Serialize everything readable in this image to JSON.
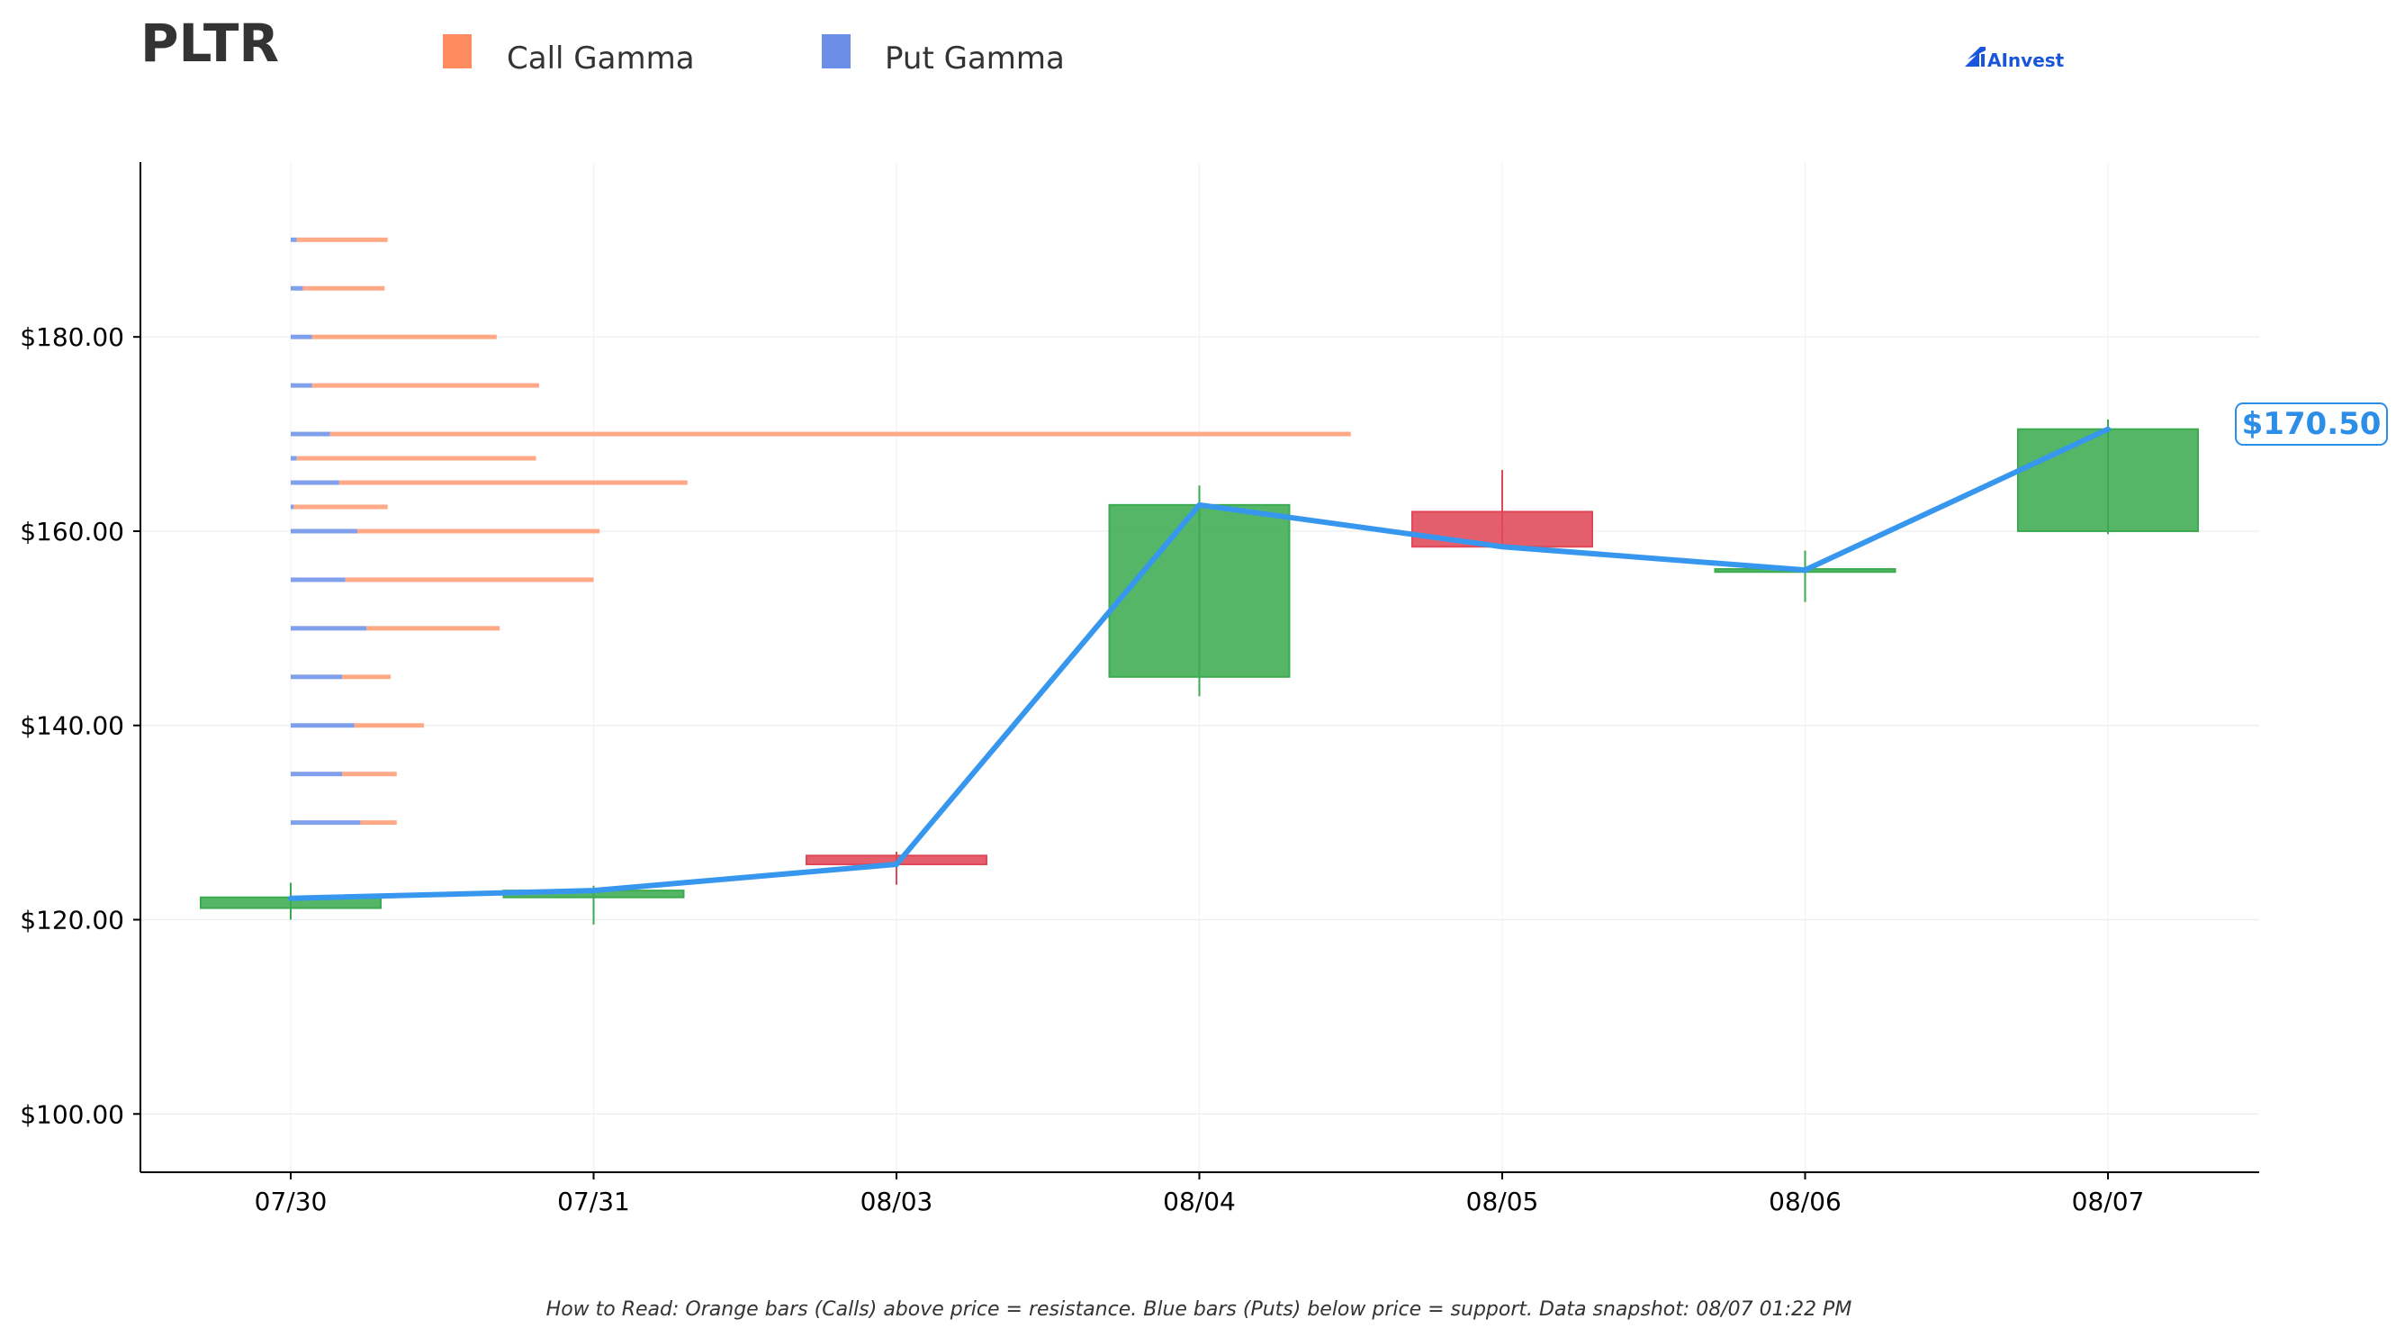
{
  "header": {
    "ticker": "PLTR",
    "brand": "AInvest"
  },
  "legend": {
    "call_label": "Call Gamma",
    "put_label": "Put Gamma"
  },
  "footer": {
    "note": "How to Read: Orange bars (Calls) above price = resistance. Blue bars (Puts) below price = support. Data snapshot: 08/07 01:22 PM"
  },
  "price_tag": {
    "label": "$170.50"
  },
  "colors": {
    "call": "#ff8c5f",
    "put": "#6b8fe8",
    "up": "#3cab50",
    "down": "#e04757",
    "line": "#3797ee",
    "tag": "#2d8ee8"
  },
  "chart_data": {
    "type": "candlestick",
    "title": "PLTR",
    "categories": [
      "07/30",
      "07/31",
      "08/03",
      "08/04",
      "08/05",
      "08/06",
      "08/07"
    ],
    "ylim": [
      94,
      198
    ],
    "yticks": [
      100,
      120,
      140,
      160,
      180
    ],
    "ytick_labels": [
      "$100.00",
      "$120.00",
      "$140.00",
      "$160.00",
      "$180.00"
    ],
    "grid": true,
    "legend_position": "top",
    "candles": [
      {
        "date": "07/30",
        "open": 121.2,
        "close": 122.3,
        "high": 123.8,
        "low": 120.0
      },
      {
        "date": "07/31",
        "open": 122.3,
        "close": 123.0,
        "high": 123.5,
        "low": 119.5
      },
      {
        "date": "08/03",
        "open": 126.6,
        "close": 125.7,
        "high": 127.0,
        "low": 123.6
      },
      {
        "date": "08/04",
        "open": 145.0,
        "close": 162.7,
        "high": 164.7,
        "low": 143.0
      },
      {
        "date": "08/05",
        "open": 162.0,
        "close": 158.4,
        "high": 166.3,
        "low": 158.2
      },
      {
        "date": "08/06",
        "open": 155.8,
        "close": 156.1,
        "high": 158.0,
        "low": 152.7
      },
      {
        "date": "08/07",
        "open": 160.0,
        "close": 170.5,
        "high": 171.5,
        "low": 159.7
      }
    ],
    "close_line": [
      122.2,
      123.0,
      125.7,
      162.7,
      158.4,
      156.0,
      170.5
    ],
    "gamma_scale_note": "relative exposure units, 07/30-to-07/31 spacing = 100",
    "gamma": [
      {
        "strike": 190,
        "put": 2,
        "call": 30
      },
      {
        "strike": 185,
        "put": 4,
        "call": 27
      },
      {
        "strike": 180,
        "put": 7,
        "call": 61
      },
      {
        "strike": 175,
        "put": 7,
        "call": 75
      },
      {
        "strike": 170,
        "put": 13,
        "call": 337
      },
      {
        "strike": 167.5,
        "put": 2,
        "call": 79
      },
      {
        "strike": 165,
        "put": 16,
        "call": 115
      },
      {
        "strike": 162.5,
        "put": 1,
        "call": 31
      },
      {
        "strike": 160,
        "put": 22,
        "call": 80
      },
      {
        "strike": 155,
        "put": 18,
        "call": 82
      },
      {
        "strike": 150,
        "put": 25,
        "call": 44
      },
      {
        "strike": 145,
        "put": 17,
        "call": 16
      },
      {
        "strike": 140,
        "put": 21,
        "call": 23
      },
      {
        "strike": 135,
        "put": 17,
        "call": 18
      },
      {
        "strike": 130,
        "put": 23,
        "call": 12
      }
    ]
  }
}
